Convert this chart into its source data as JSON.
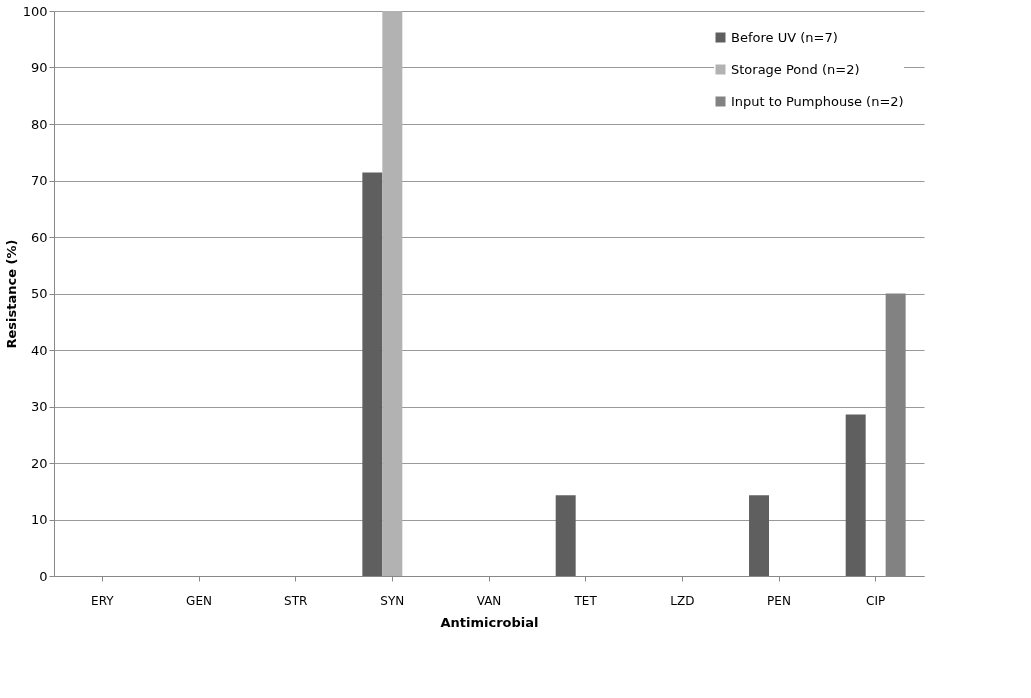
{
  "chart_data": {
    "type": "bar",
    "xlabel": "Antimicrobial",
    "ylabel": "Resistance (%)",
    "categories": [
      "ERY",
      "GEN",
      "STR",
      "SYN",
      "VAN",
      "TET",
      "LZD",
      "PEN",
      "CIP"
    ],
    "series": [
      {
        "name": "Before UV (n=7)",
        "color": "#5f5f5f",
        "values": [
          0,
          0,
          0,
          71.4,
          0,
          14.3,
          0,
          14.3,
          28.6
        ]
      },
      {
        "name": "Storage Pond (n=2)",
        "color": "#b2b2b2",
        "values": [
          0,
          0,
          0,
          100,
          0,
          0,
          0,
          0,
          0
        ]
      },
      {
        "name": "Input to Pumphouse (n=2)",
        "color": "#828282",
        "values": [
          0,
          0,
          0,
          0,
          0,
          0,
          0,
          0,
          50
        ]
      }
    ],
    "ylim": [
      0,
      100
    ],
    "yticks": [
      0,
      10,
      20,
      30,
      40,
      50,
      60,
      70,
      80,
      90,
      100
    ],
    "grid": "y",
    "legend": "top right"
  }
}
